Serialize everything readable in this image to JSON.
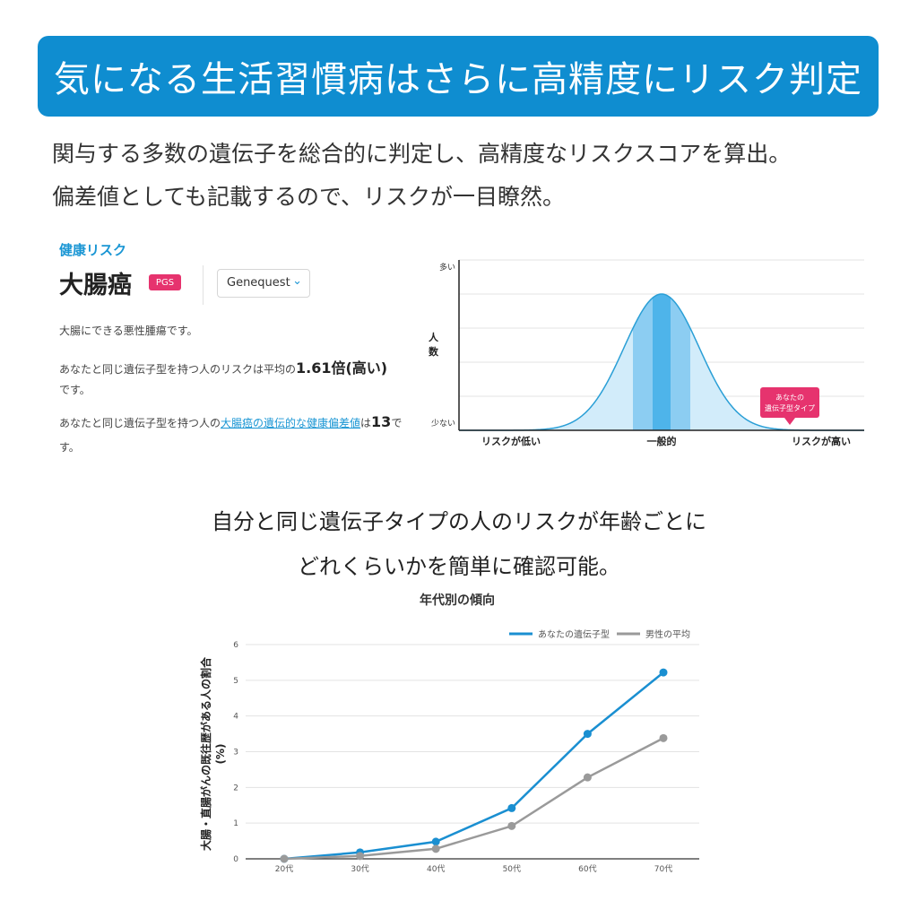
{
  "banner": {
    "title": "気になる生活習慣病はさらに高精度にリスク判定"
  },
  "intro": {
    "line1": "関与する多数の遺伝子を総合的に判定し、高精度なリスクスコアを算出。",
    "line2": "偏差値としても記載するので、リスクが一目瞭然。"
  },
  "card": {
    "section_label": "健康リスク",
    "disease": "大腸癌",
    "badge": "PGS",
    "dropdown_value": "Genequest",
    "desc1": "大腸にできる悪性腫瘍です。",
    "desc2_prefix": "あなたと同じ遺伝子型を持つ人のリスクは平均の",
    "desc2_value": "1.61倍(高い)",
    "desc2_suffix": "です。",
    "desc3_prefix": "あなたと同じ遺伝子型を持つ人の",
    "desc3_link": "大腸癌の遺伝的な健康偏差値",
    "desc3_mid": "は",
    "desc3_value": "13",
    "desc3_suffix_a": "で",
    "desc3_suffix_b": "す。"
  },
  "distribution": {
    "y_top": "多い",
    "y_bottom": "少ない",
    "y_label_1": "人",
    "y_label_2": "数",
    "x_low": "リスクが低い",
    "x_mid": "一般的",
    "x_high": "リスクが高い",
    "marker_line1": "あなたの",
    "marker_line2": "遺伝子型タイプ",
    "colors": {
      "curve": "#2a9fd6",
      "fill": "#d2ecfa",
      "band": "#8ccdf2",
      "center": "#4eb4ea",
      "marker": "#e6336e"
    }
  },
  "mid_text": {
    "line1": "自分と同じ遺伝子タイプの人のリスクが年齢ごとに",
    "line2": "どれくらいかを簡単に確認可能。"
  },
  "chart_data": {
    "type": "line",
    "title": "年代別の傾向",
    "ylabel_line1": "大腸・直腸がんの既往歴がある人の割合",
    "ylabel_line2": "(%)",
    "xlabel": "",
    "categories": [
      "20代",
      "30代",
      "40代",
      "50代",
      "60代",
      "70代"
    ],
    "yticks": [
      "0",
      "1",
      "2",
      "3",
      "4",
      "5",
      "6"
    ],
    "ylim": [
      0,
      6
    ],
    "grid": true,
    "legend_position": "top-right",
    "series": [
      {
        "name": "あなたの遺伝子型",
        "color": "#1a8fd1",
        "values": [
          0,
          0.18,
          0.48,
          1.42,
          3.5,
          5.22
        ]
      },
      {
        "name": "男性の平均",
        "color": "#9a9a9a",
        "values": [
          0,
          0.08,
          0.28,
          0.92,
          2.28,
          3.38
        ]
      }
    ]
  }
}
